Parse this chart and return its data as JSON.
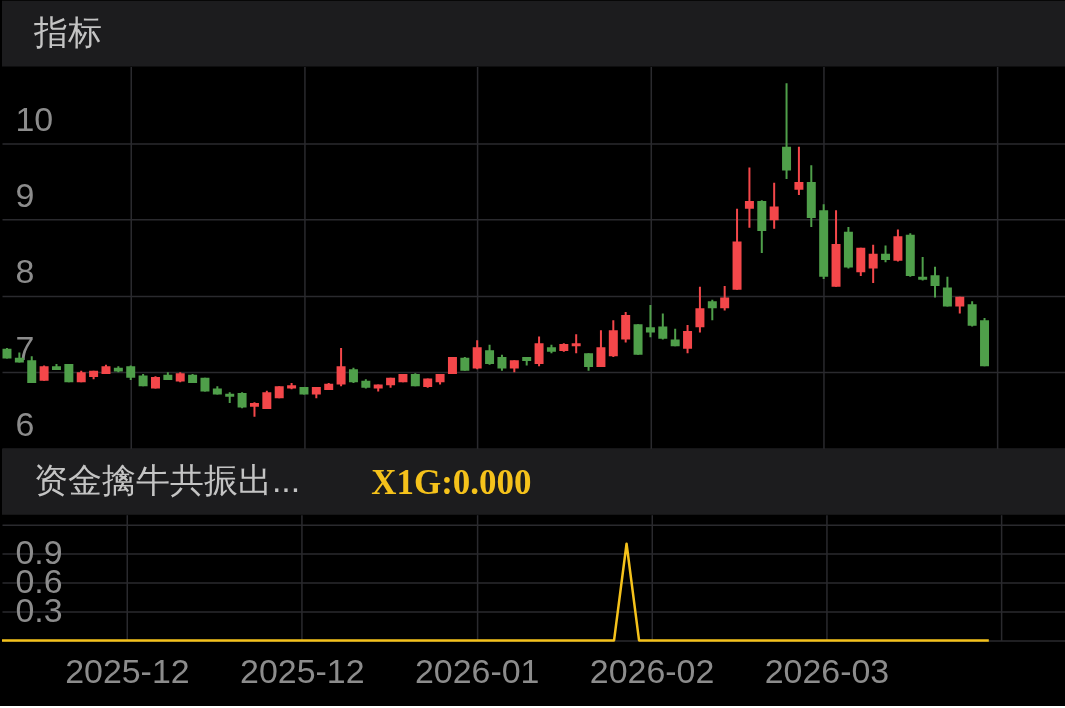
{
  "chart_data": [
    {
      "type": "candlestick",
      "title": "指标",
      "categories": [
        null,
        null,
        null,
        null,
        null,
        null,
        null,
        null,
        null,
        null,
        "2025-12",
        null,
        null,
        null,
        null,
        null,
        null,
        null,
        null,
        null,
        null,
        null,
        null,
        null,
        "2025-12",
        null,
        null,
        null,
        null,
        null,
        null,
        null,
        null,
        null,
        null,
        null,
        null,
        null,
        "2026-01",
        null,
        null,
        null,
        null,
        null,
        null,
        null,
        null,
        null,
        null,
        null,
        null,
        null,
        "2026-02",
        null,
        null,
        null,
        null,
        null,
        null,
        null,
        null,
        null,
        null,
        null,
        null,
        null,
        "2026-03",
        null,
        null,
        null,
        null,
        null,
        null,
        null,
        null,
        null,
        null,
        null,
        null,
        null
      ],
      "ohlc": [
        [
          7.31,
          7.32,
          7.18,
          7.18
        ],
        [
          7.19,
          7.26,
          7.13,
          7.13
        ],
        [
          7.16,
          7.21,
          6.86,
          6.86
        ],
        [
          6.89,
          7.09,
          6.89,
          7.08
        ],
        [
          7.08,
          7.11,
          7.03,
          7.03
        ],
        [
          7.11,
          7.11,
          6.87,
          6.87
        ],
        [
          6.87,
          7.02,
          6.87,
          7.0
        ],
        [
          6.94,
          7.02,
          6.91,
          7.02
        ],
        [
          6.98,
          7.1,
          6.98,
          7.08
        ],
        [
          7.06,
          7.08,
          7.0,
          7.01
        ],
        [
          7.08,
          7.09,
          6.9,
          6.93
        ],
        [
          6.96,
          6.98,
          6.82,
          6.82
        ],
        [
          6.79,
          6.95,
          6.79,
          6.94
        ],
        [
          6.97,
          7.0,
          6.9,
          6.9
        ],
        [
          6.88,
          7.0,
          6.87,
          6.99
        ],
        [
          6.97,
          6.98,
          6.86,
          6.86
        ],
        [
          6.93,
          6.93,
          6.75,
          6.75
        ],
        [
          6.79,
          6.82,
          6.71,
          6.71
        ],
        [
          6.72,
          6.74,
          6.6,
          6.68
        ],
        [
          6.73,
          6.74,
          6.53,
          6.54
        ],
        [
          6.55,
          6.61,
          6.42,
          6.6
        ],
        [
          6.52,
          6.76,
          6.52,
          6.74
        ],
        [
          6.66,
          6.82,
          6.66,
          6.82
        ],
        [
          6.79,
          6.86,
          6.78,
          6.83
        ],
        [
          6.81,
          6.81,
          6.71,
          6.71
        ],
        [
          6.71,
          6.81,
          6.66,
          6.81
        ],
        [
          6.77,
          6.86,
          6.77,
          6.85
        ],
        [
          6.84,
          7.32,
          6.82,
          7.08
        ],
        [
          7.04,
          7.06,
          6.86,
          6.87
        ],
        [
          6.89,
          6.91,
          6.79,
          6.8
        ],
        [
          6.79,
          6.84,
          6.75,
          6.84
        ],
        [
          6.83,
          6.93,
          6.8,
          6.93
        ],
        [
          6.87,
          6.98,
          6.87,
          6.98
        ],
        [
          6.98,
          6.99,
          6.82,
          6.82
        ],
        [
          6.81,
          6.92,
          6.8,
          6.92
        ],
        [
          6.87,
          6.98,
          6.84,
          6.98
        ],
        [
          6.98,
          7.2,
          6.98,
          7.2
        ],
        [
          7.19,
          7.2,
          7.02,
          7.02
        ],
        [
          7.05,
          7.42,
          7.04,
          7.33
        ],
        [
          7.29,
          7.36,
          7.1,
          7.11
        ],
        [
          7.2,
          7.23,
          7.02,
          7.05
        ],
        [
          7.05,
          7.16,
          7.0,
          7.16
        ],
        [
          7.2,
          7.2,
          7.09,
          7.15
        ],
        [
          7.11,
          7.47,
          7.08,
          7.38
        ],
        [
          7.33,
          7.36,
          7.25,
          7.27
        ],
        [
          7.28,
          7.38,
          7.27,
          7.37
        ],
        [
          7.34,
          7.5,
          7.25,
          7.38
        ],
        [
          7.25,
          7.25,
          7.02,
          7.07
        ],
        [
          7.07,
          7.55,
          7.07,
          7.33
        ],
        [
          7.21,
          7.68,
          7.2,
          7.55
        ],
        [
          7.43,
          7.79,
          7.39,
          7.75
        ],
        [
          7.63,
          7.63,
          7.23,
          7.23
        ],
        [
          7.59,
          7.88,
          7.46,
          7.52
        ],
        [
          7.6,
          7.77,
          7.43,
          7.44
        ],
        [
          7.43,
          7.57,
          7.34,
          7.34
        ],
        [
          7.31,
          7.62,
          7.25,
          7.54
        ],
        [
          7.59,
          8.12,
          7.52,
          7.84
        ],
        [
          7.93,
          7.95,
          7.68,
          7.84
        ],
        [
          7.84,
          8.13,
          7.81,
          7.98
        ],
        [
          8.08,
          9.14,
          8.08,
          8.71
        ],
        [
          9.14,
          9.68,
          8.89,
          9.24
        ],
        [
          9.24,
          9.25,
          8.56,
          8.85
        ],
        [
          8.99,
          9.48,
          8.88,
          9.17
        ],
        [
          9.95,
          10.78,
          9.53,
          9.64
        ],
        [
          9.39,
          9.95,
          9.32,
          9.49
        ],
        [
          9.49,
          9.71,
          8.9,
          9.02
        ],
        [
          9.12,
          9.2,
          8.22,
          8.25
        ],
        [
          8.12,
          9.12,
          8.12,
          8.68
        ],
        [
          8.84,
          8.9,
          8.36,
          8.37
        ],
        [
          8.31,
          8.63,
          8.26,
          8.63
        ],
        [
          8.36,
          8.67,
          8.17,
          8.55
        ],
        [
          8.55,
          8.66,
          8.44,
          8.47
        ],
        [
          8.46,
          8.87,
          8.45,
          8.78
        ],
        [
          8.8,
          8.82,
          8.25,
          8.26
        ],
        [
          8.25,
          8.51,
          8.2,
          8.21
        ],
        [
          8.27,
          8.38,
          7.98,
          8.13
        ],
        [
          8.11,
          8.25,
          7.86,
          7.86
        ],
        [
          7.86,
          7.99,
          7.77,
          7.99
        ],
        [
          7.89,
          7.93,
          7.6,
          7.61
        ],
        [
          7.68,
          7.71,
          7.08,
          7.08
        ]
      ],
      "colors": [
        "#4f9f4a",
        "#4f9f4a",
        "#4f9f4a",
        "#f4474a",
        "#4f9f4a",
        "#4f9f4a",
        "#f4474a",
        "#f4474a",
        "#f4474a",
        "#4f9f4a",
        "#4f9f4a",
        "#4f9f4a",
        "#f4474a",
        "#4f9f4a",
        "#f4474a",
        "#4f9f4a",
        "#4f9f4a",
        "#4f9f4a",
        "#4f9f4a",
        "#4f9f4a",
        "#f4474a",
        "#f4474a",
        "#f4474a",
        "#f4474a",
        "#4f9f4a",
        "#f4474a",
        "#f4474a",
        "#f4474a",
        "#4f9f4a",
        "#4f9f4a",
        "#f4474a",
        "#f4474a",
        "#f4474a",
        "#4f9f4a",
        "#f4474a",
        "#f4474a",
        "#f4474a",
        "#4f9f4a",
        "#f4474a",
        "#4f9f4a",
        "#4f9f4a",
        "#f4474a",
        "#4f9f4a",
        "#f4474a",
        "#4f9f4a",
        "#f4474a",
        "#f4474a",
        "#4f9f4a",
        "#f4474a",
        "#f4474a",
        "#f4474a",
        "#4f9f4a",
        "#4f9f4a",
        "#4f9f4a",
        "#4f9f4a",
        "#f4474a",
        "#f4474a",
        "#4f9f4a",
        "#f4474a",
        "#f4474a",
        "#f4474a",
        "#4f9f4a",
        "#f4474a",
        "#4f9f4a",
        "#f4474a",
        "#4f9f4a",
        "#4f9f4a",
        "#f4474a",
        "#4f9f4a",
        "#f4474a",
        "#f4474a",
        "#4f9f4a",
        "#f4474a",
        "#4f9f4a",
        "#4f9f4a",
        "#4f9f4a",
        "#4f9f4a",
        "#f4474a",
        "#4f9f4a",
        "#4f9f4a"
      ],
      "ylim": [
        6,
        11
      ],
      "yticks": [
        6,
        7,
        8,
        9,
        10
      ],
      "grid": true,
      "tick_labels": "y"
    },
    {
      "type": "line",
      "title": "资金擒牛共振出...",
      "categories": [
        null,
        null,
        null,
        null,
        null,
        null,
        null,
        null,
        null,
        null,
        "2025-12",
        null,
        null,
        null,
        null,
        null,
        null,
        null,
        null,
        null,
        null,
        null,
        null,
        null,
        "2025-12",
        null,
        null,
        null,
        null,
        null,
        null,
        null,
        null,
        null,
        null,
        null,
        null,
        null,
        "2026-01",
        null,
        null,
        null,
        null,
        null,
        null,
        null,
        null,
        null,
        null,
        null,
        null,
        null,
        "2026-02",
        null,
        null,
        null,
        null,
        null,
        null,
        null,
        null,
        null,
        null,
        null,
        null,
        null,
        "2026-03",
        null,
        null,
        null,
        null,
        null,
        null,
        null,
        null,
        null,
        null,
        null,
        null,
        null
      ],
      "series": [
        {
          "name": "X1G:0.000",
          "color": "#f5c21b",
          "values": [
            0,
            0,
            0,
            0,
            0,
            0,
            0,
            0,
            0,
            0,
            0,
            0,
            0,
            0,
            0,
            0,
            0,
            0,
            0,
            0,
            0,
            0,
            0,
            0,
            0,
            0,
            0,
            0,
            0,
            0,
            0,
            0,
            0,
            0,
            0,
            0,
            0,
            0,
            0,
            0,
            0,
            0,
            0,
            0,
            0,
            0,
            0,
            0,
            0,
            0,
            1,
            0,
            0,
            0,
            0,
            0,
            0,
            0,
            0,
            0,
            0,
            0,
            0,
            0,
            0,
            0,
            0,
            0,
            0,
            0,
            0,
            0,
            0,
            0,
            0,
            0,
            0,
            0,
            0,
            0
          ]
        }
      ],
      "ylim": [
        0,
        1.3
      ],
      "yticks": [
        {
          "value": 0,
          "label": null
        },
        0.3,
        0.6,
        0.9,
        {
          "value": 1.2,
          "label": null
        }
      ],
      "grid": true,
      "legend": "top left"
    }
  ]
}
